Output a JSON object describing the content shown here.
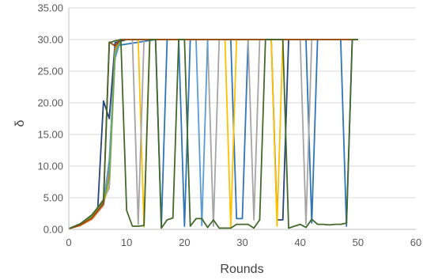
{
  "chart_data": {
    "type": "line",
    "xlabel": "Rounds",
    "ylabel": "δ",
    "xlim": [
      0,
      60
    ],
    "ylim": [
      0,
      35
    ],
    "x_ticks": [
      "0",
      "10",
      "20",
      "30",
      "40",
      "50",
      "60"
    ],
    "y_ticks": [
      "0.00",
      "5.00",
      "10.00",
      "15.00",
      "20.00",
      "25.00",
      "30.00",
      "35.00"
    ],
    "grid": "horizontal",
    "legend": "none",
    "series": [
      {
        "color": "#264478",
        "values": [
          [
            0,
            0.1
          ],
          [
            2,
            0.7
          ],
          [
            4,
            2.2
          ],
          [
            5,
            3.2
          ],
          [
            6,
            20.3
          ],
          [
            7,
            17.5
          ],
          [
            8,
            29.5
          ],
          [
            10,
            30
          ],
          [
            35,
            30
          ],
          [
            36,
            1.5
          ],
          [
            37,
            1.5
          ],
          [
            38,
            30
          ],
          [
            50,
            30
          ]
        ]
      },
      {
        "color": "#2e75b6",
        "values": [
          [
            0,
            0.1
          ],
          [
            2,
            0.8
          ],
          [
            4,
            2.0
          ],
          [
            6,
            4.5
          ],
          [
            7,
            10
          ],
          [
            8,
            29
          ],
          [
            15,
            30
          ],
          [
            16,
            0.3
          ],
          [
            17,
            30
          ],
          [
            19,
            30
          ],
          [
            20,
            0.5
          ],
          [
            21,
            30
          ],
          [
            28,
            30
          ],
          [
            29,
            1.7
          ],
          [
            30,
            1.7
          ],
          [
            31,
            30
          ],
          [
            41,
            30
          ],
          [
            42,
            1.0
          ],
          [
            43,
            30
          ],
          [
            47,
            30
          ],
          [
            48,
            0.5
          ],
          [
            49,
            30
          ],
          [
            50,
            30
          ]
        ]
      },
      {
        "color": "#ffc000",
        "values": [
          [
            0,
            0.1
          ],
          [
            2,
            0.9
          ],
          [
            4,
            1.8
          ],
          [
            6,
            4.2
          ],
          [
            7,
            7
          ],
          [
            8,
            28
          ],
          [
            9,
            30
          ],
          [
            12,
            30
          ],
          [
            13,
            0.4
          ],
          [
            14,
            30
          ],
          [
            27,
            30
          ],
          [
            28,
            0.2
          ],
          [
            29,
            30
          ],
          [
            35,
            30
          ],
          [
            36,
            0.5
          ],
          [
            37,
            30
          ],
          [
            50,
            30
          ]
        ]
      },
      {
        "color": "#a5a5a5",
        "values": [
          [
            0,
            0.1
          ],
          [
            2,
            0.8
          ],
          [
            4,
            2.1
          ],
          [
            6,
            4.8
          ],
          [
            7,
            6.5
          ],
          [
            8,
            27.5
          ],
          [
            9,
            30
          ],
          [
            11,
            30
          ],
          [
            12,
            0.8
          ],
          [
            13,
            30
          ],
          [
            24,
            30
          ],
          [
            25,
            0.5
          ],
          [
            26,
            30
          ],
          [
            31,
            30
          ],
          [
            32,
            1.5
          ],
          [
            33,
            30
          ],
          [
            40,
            30
          ],
          [
            41,
            0.8
          ],
          [
            42,
            30
          ],
          [
            50,
            30
          ]
        ]
      },
      {
        "color": "#ed7d31",
        "values": [
          [
            0,
            0.1
          ],
          [
            2,
            0.6
          ],
          [
            4,
            1.6
          ],
          [
            6,
            3.8
          ],
          [
            7,
            9
          ],
          [
            8,
            28.5
          ],
          [
            9,
            30
          ],
          [
            50,
            30
          ]
        ]
      },
      {
        "color": "#5b9bd5",
        "values": [
          [
            0,
            0.1
          ],
          [
            2,
            0.7
          ],
          [
            4,
            1.9
          ],
          [
            6,
            4.0
          ],
          [
            7,
            11
          ],
          [
            8,
            27
          ],
          [
            9,
            30
          ],
          [
            22,
            30
          ],
          [
            23,
            0.6
          ],
          [
            24,
            30
          ],
          [
            50,
            30
          ]
        ]
      },
      {
        "color": "#70ad47",
        "values": [
          [
            0,
            0.1
          ],
          [
            2,
            0.8
          ],
          [
            4,
            2.0
          ],
          [
            6,
            4.4
          ],
          [
            7,
            8
          ],
          [
            8,
            28
          ],
          [
            9,
            30
          ],
          [
            50,
            30
          ]
        ]
      },
      {
        "color": "#9e480e",
        "values": [
          [
            0,
            0.1
          ],
          [
            2,
            0.7
          ],
          [
            4,
            1.8
          ],
          [
            6,
            4.1
          ],
          [
            7,
            29.6
          ],
          [
            8,
            29
          ],
          [
            9,
            30
          ],
          [
            50,
            30
          ]
        ]
      },
      {
        "color": "#43682b",
        "values": [
          [
            0,
            0.1
          ],
          [
            2,
            0.9
          ],
          [
            4,
            2.3
          ],
          [
            6,
            4.6
          ],
          [
            7,
            29.5
          ],
          [
            8,
            29.8
          ],
          [
            9,
            30
          ],
          [
            10,
            3
          ],
          [
            11,
            0.5
          ],
          [
            12,
            0.5
          ],
          [
            13,
            0.6
          ],
          [
            14,
            30
          ],
          [
            15,
            30
          ],
          [
            16,
            0.2
          ],
          [
            17,
            1.5
          ],
          [
            18,
            1.8
          ],
          [
            19,
            30
          ],
          [
            20,
            30
          ],
          [
            21,
            0.5
          ],
          [
            22,
            1.7
          ],
          [
            23,
            1.7
          ],
          [
            24,
            0.3
          ],
          [
            25,
            1.5
          ],
          [
            26,
            0.2
          ],
          [
            27,
            0.2
          ],
          [
            28,
            0.2
          ],
          [
            29,
            0.8
          ],
          [
            30,
            0.8
          ],
          [
            31,
            0.8
          ],
          [
            32,
            0.2
          ],
          [
            33,
            1.5
          ],
          [
            34,
            30
          ],
          [
            37,
            30
          ],
          [
            38,
            0.2
          ],
          [
            39,
            0.5
          ],
          [
            40,
            0.8
          ],
          [
            41,
            0.3
          ],
          [
            42,
            1.6
          ],
          [
            43,
            0.8
          ],
          [
            44,
            0.8
          ],
          [
            45,
            0.7
          ],
          [
            46,
            0.8
          ],
          [
            47,
            0.8
          ],
          [
            48,
            1.0
          ],
          [
            49,
            30
          ],
          [
            50,
            30
          ]
        ]
      }
    ]
  }
}
